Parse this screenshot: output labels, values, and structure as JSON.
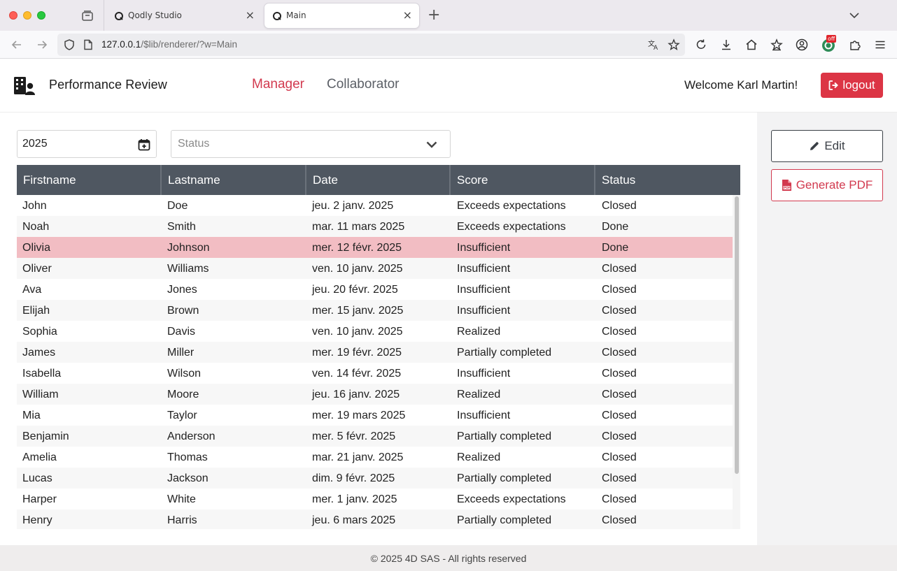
{
  "browser": {
    "tabs": [
      {
        "title": "Qodly Studio",
        "active": false
      },
      {
        "title": "Main",
        "active": true
      }
    ],
    "url_host": "127.0.0.1",
    "url_path": "/$lib/renderer/?w=Main",
    "extension_badge": "off"
  },
  "header": {
    "app_title": "Performance Review",
    "nav": [
      "Manager",
      "Collaborator"
    ],
    "active_nav": "Manager",
    "welcome": "Welcome Karl Martin!",
    "logout_label": "logout"
  },
  "filters": {
    "year_value": "2025",
    "status_placeholder": "Status"
  },
  "table": {
    "columns": [
      "Firstname",
      "Lastname",
      "Date",
      "Score",
      "Status"
    ],
    "rows": [
      [
        "John",
        "Doe",
        "jeu. 2 janv. 2025",
        "Exceeds expectations",
        "Closed"
      ],
      [
        "Noah",
        "Smith",
        "mar. 11 mars 2025",
        "Exceeds expectations",
        "Done"
      ],
      [
        "Olivia",
        "Johnson",
        "mer. 12 févr. 2025",
        "Insufficient",
        "Done"
      ],
      [
        "Oliver",
        "Williams",
        "ven. 10 janv. 2025",
        "Insufficient",
        "Closed"
      ],
      [
        "Ava",
        "Jones",
        "jeu. 20 févr. 2025",
        "Insufficient",
        "Closed"
      ],
      [
        "Elijah",
        "Brown",
        "mer. 15 janv. 2025",
        "Insufficient",
        "Closed"
      ],
      [
        "Sophia",
        "Davis",
        "ven. 10 janv. 2025",
        "Realized",
        "Closed"
      ],
      [
        "James",
        "Miller",
        "mer. 19 févr. 2025",
        "Partially completed",
        "Closed"
      ],
      [
        "Isabella",
        "Wilson",
        "ven. 14 févr. 2025",
        "Insufficient",
        "Closed"
      ],
      [
        "William",
        "Moore",
        "jeu. 16 janv. 2025",
        "Realized",
        "Closed"
      ],
      [
        "Mia",
        "Taylor",
        "mer. 19 mars 2025",
        "Insufficient",
        "Closed"
      ],
      [
        "Benjamin",
        "Anderson",
        "mer. 5 févr. 2025",
        "Partially completed",
        "Closed"
      ],
      [
        "Amelia",
        "Thomas",
        "mar. 21 janv. 2025",
        "Realized",
        "Closed"
      ],
      [
        "Lucas",
        "Jackson",
        "dim. 9 févr. 2025",
        "Partially completed",
        "Closed"
      ],
      [
        "Harper",
        "White",
        "mer. 1 janv. 2025",
        "Exceeds expectations",
        "Closed"
      ],
      [
        "Henry",
        "Harris",
        "jeu. 6 mars 2025",
        "Partially completed",
        "Closed"
      ]
    ],
    "selected_row": 2
  },
  "sidebar": {
    "edit_label": "Edit",
    "pdf_label": "Generate PDF"
  },
  "footer": {
    "text": "© 2025 4D SAS - All rights reserved"
  },
  "colors": {
    "accent": "#d23a4f",
    "logout_bg": "#dc3545",
    "table_header": "#4f5761",
    "selected_row": "#f2bdc3"
  }
}
